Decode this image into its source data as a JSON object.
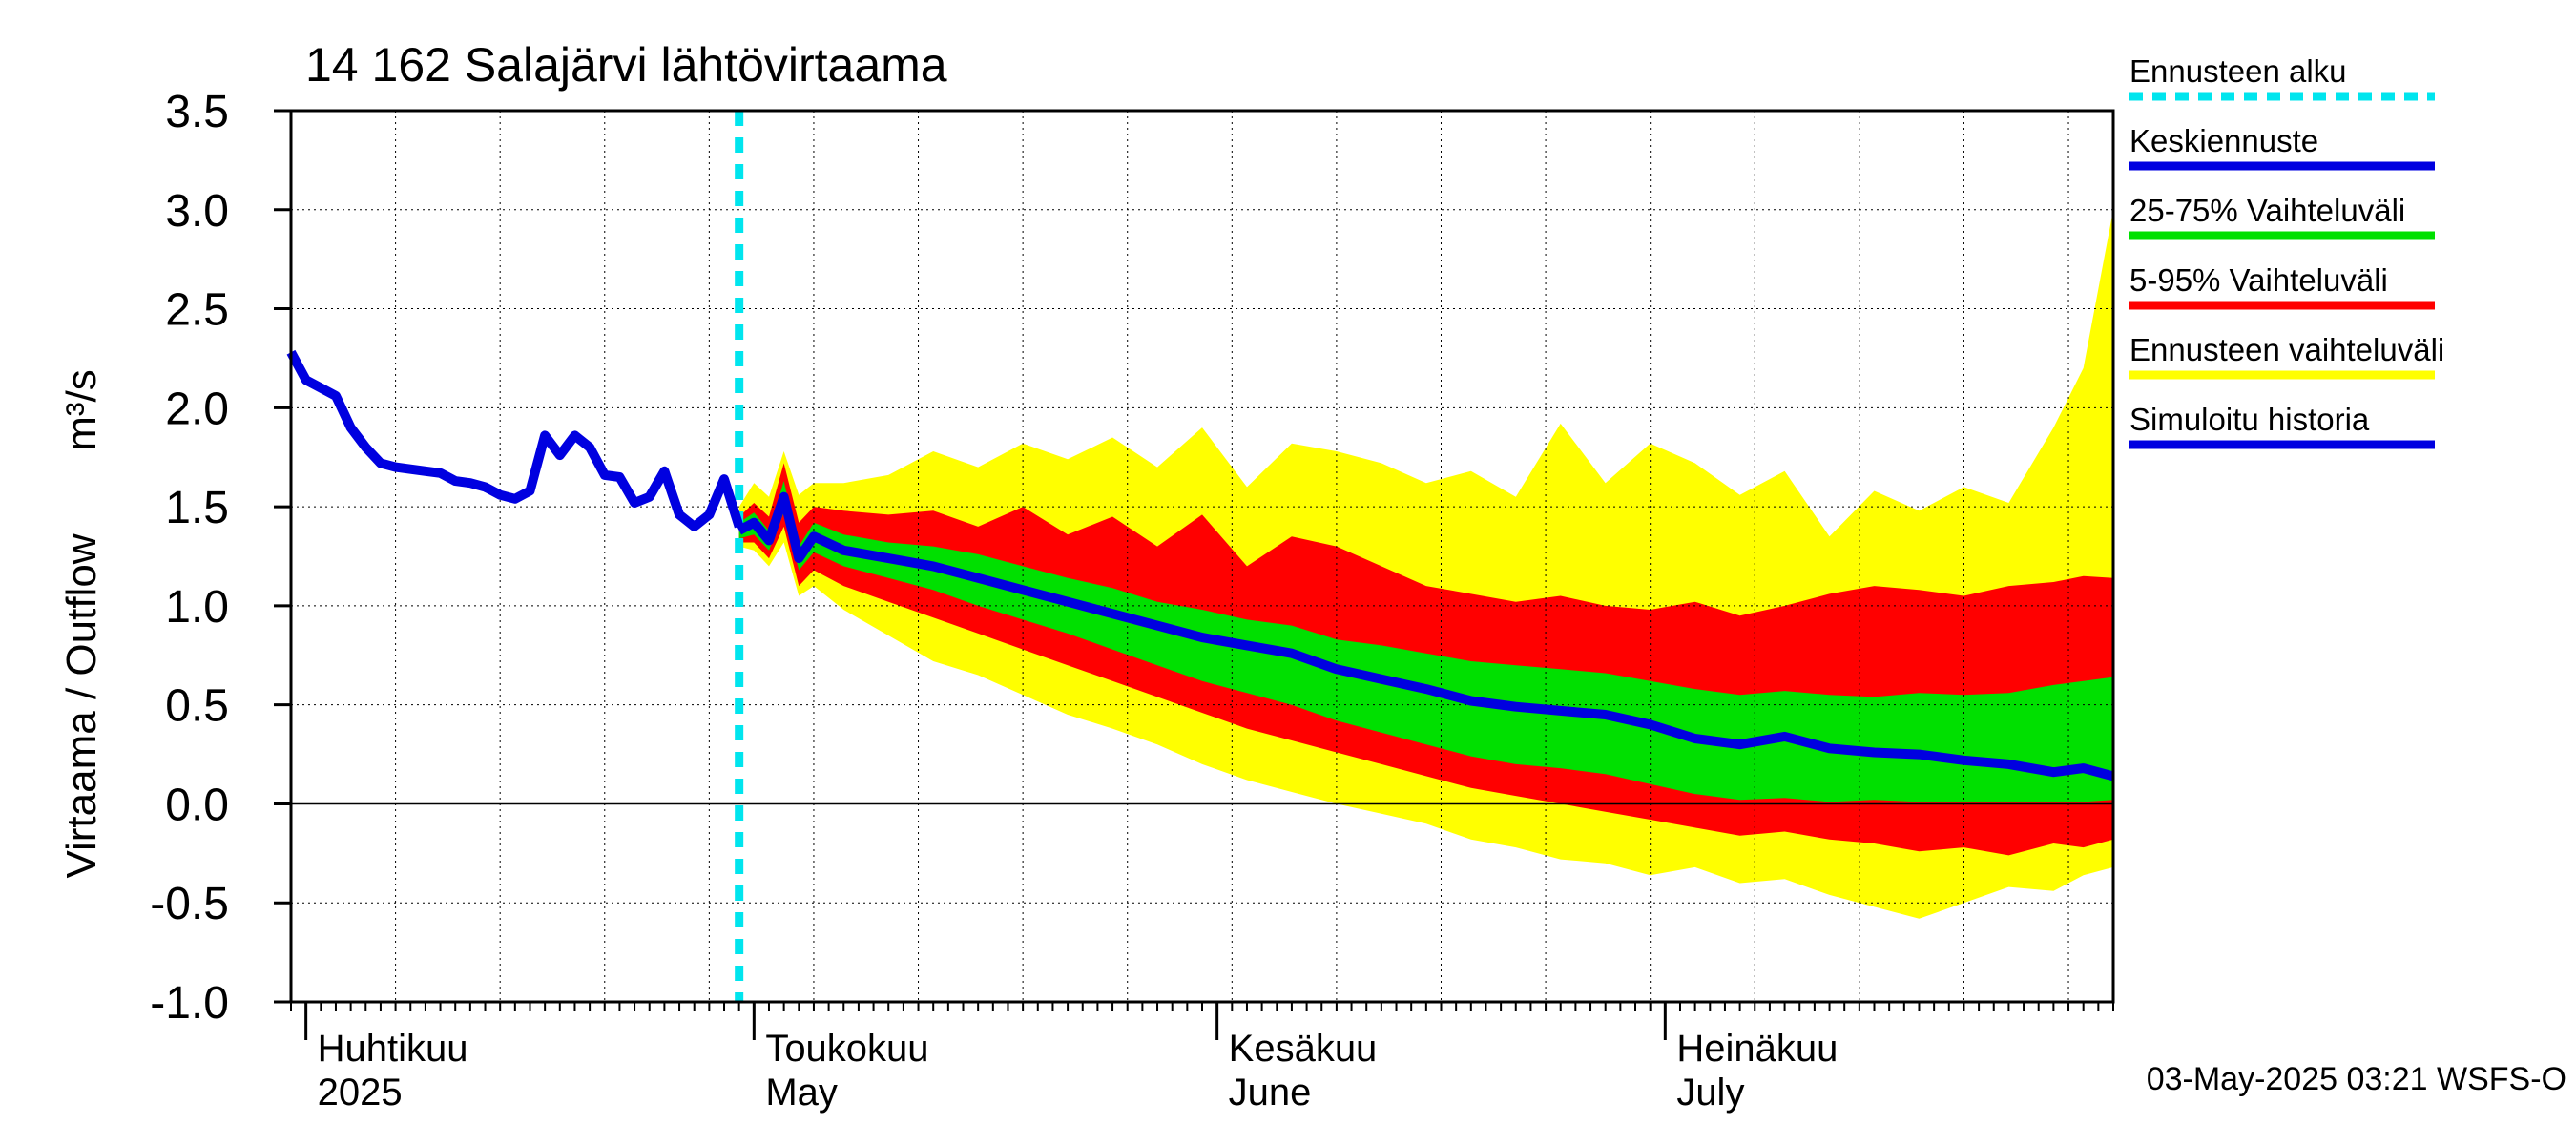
{
  "chart_data": {
    "type": "area",
    "title": "14 162 Salajärvi lähtövirtaama",
    "ylabel_fi": "Virtaama / Outflow",
    "ylabel_unit": "m³/s",
    "ylim": [
      -1.0,
      3.5
    ],
    "yticks": [
      "3.5",
      "3.0",
      "2.5",
      "2.0",
      "1.5",
      "1.0",
      "0.5",
      "0.0",
      "-0.5",
      "-1.0"
    ],
    "x_range": [
      "2025-03-31",
      "2025-07-31"
    ],
    "forecast_start": "2025-04-30",
    "month_labels": [
      {
        "date": "2025-04-01",
        "line1": "Huhtikuu",
        "line2": "2025"
      },
      {
        "date": "2025-05-01",
        "line1": "Toukokuu",
        "line2": "May"
      },
      {
        "date": "2025-06-01",
        "line1": "Kesäkuu",
        "line2": "June"
      },
      {
        "date": "2025-07-01",
        "line1": "Heinäkuu",
        "line2": "July"
      }
    ],
    "legend": [
      {
        "label": "Ennusteen alku",
        "color": "#00e5ee",
        "style": "dashed"
      },
      {
        "label": "Keskiennuste",
        "color": "#0000e0",
        "style": "solid"
      },
      {
        "label": "25-75% Vaihteluväli",
        "color": "#00e000",
        "style": "solid"
      },
      {
        "label": "5-95% Vaihteluväli",
        "color": "#ff0000",
        "style": "solid"
      },
      {
        "label": "Ennusteen vaihteluväli",
        "color": "#ffff00",
        "style": "solid"
      },
      {
        "label": "Simuloitu historia",
        "color": "#0000e0",
        "style": "solid"
      }
    ],
    "timestamp": "03-May-2025 03:21 WSFS-O",
    "history": {
      "name": "Simuloitu historia",
      "x": [
        "2025-03-31",
        "2025-04-01",
        "2025-04-02",
        "2025-04-03",
        "2025-04-04",
        "2025-04-05",
        "2025-04-06",
        "2025-04-07",
        "2025-04-08",
        "2025-04-09",
        "2025-04-10",
        "2025-04-11",
        "2025-04-12",
        "2025-04-13",
        "2025-04-14",
        "2025-04-15",
        "2025-04-16",
        "2025-04-17",
        "2025-04-18",
        "2025-04-19",
        "2025-04-20",
        "2025-04-21",
        "2025-04-22",
        "2025-04-23",
        "2025-04-24",
        "2025-04-25",
        "2025-04-26",
        "2025-04-27",
        "2025-04-28",
        "2025-04-29",
        "2025-04-30"
      ],
      "y": [
        2.28,
        2.14,
        2.1,
        2.06,
        1.9,
        1.8,
        1.72,
        1.7,
        1.69,
        1.68,
        1.67,
        1.63,
        1.62,
        1.6,
        1.56,
        1.54,
        1.58,
        1.86,
        1.76,
        1.86,
        1.8,
        1.66,
        1.65,
        1.52,
        1.55,
        1.68,
        1.46,
        1.4,
        1.46,
        1.64,
        1.4
      ]
    },
    "forecast": {
      "x": [
        "2025-04-30",
        "2025-05-01",
        "2025-05-02",
        "2025-05-03",
        "2025-05-04",
        "2025-05-05",
        "2025-05-07",
        "2025-05-10",
        "2025-05-13",
        "2025-05-16",
        "2025-05-19",
        "2025-05-22",
        "2025-05-25",
        "2025-05-28",
        "2025-05-31",
        "2025-06-03",
        "2025-06-06",
        "2025-06-09",
        "2025-06-12",
        "2025-06-15",
        "2025-06-18",
        "2025-06-21",
        "2025-06-24",
        "2025-06-27",
        "2025-06-30",
        "2025-07-03",
        "2025-07-06",
        "2025-07-09",
        "2025-07-12",
        "2025-07-15",
        "2025-07-18",
        "2025-07-21",
        "2025-07-24",
        "2025-07-27",
        "2025-07-29",
        "2025-07-31"
      ],
      "median": [
        1.38,
        1.42,
        1.33,
        1.55,
        1.24,
        1.35,
        1.28,
        1.24,
        1.2,
        1.14,
        1.08,
        1.02,
        0.96,
        0.9,
        0.84,
        0.8,
        0.76,
        0.68,
        0.63,
        0.58,
        0.52,
        0.49,
        0.47,
        0.45,
        0.4,
        0.33,
        0.3,
        0.34,
        0.28,
        0.26,
        0.25,
        0.22,
        0.2,
        0.16,
        0.18,
        0.14
      ],
      "p25": [
        1.34,
        1.36,
        1.28,
        1.47,
        1.18,
        1.27,
        1.2,
        1.14,
        1.08,
        1.0,
        0.93,
        0.86,
        0.78,
        0.7,
        0.62,
        0.56,
        0.5,
        0.42,
        0.36,
        0.3,
        0.24,
        0.2,
        0.18,
        0.15,
        0.1,
        0.05,
        0.02,
        0.03,
        0.01,
        0.02,
        0.01,
        0.01,
        0.01,
        0.01,
        0.01,
        0.02
      ],
      "p75": [
        1.42,
        1.47,
        1.38,
        1.63,
        1.3,
        1.42,
        1.36,
        1.32,
        1.3,
        1.26,
        1.2,
        1.14,
        1.09,
        1.02,
        0.98,
        0.93,
        0.9,
        0.83,
        0.8,
        0.76,
        0.72,
        0.7,
        0.68,
        0.66,
        0.62,
        0.58,
        0.55,
        0.57,
        0.55,
        0.54,
        0.56,
        0.55,
        0.56,
        0.6,
        0.62,
        0.64
      ],
      "p5": [
        1.32,
        1.32,
        1.24,
        1.4,
        1.1,
        1.18,
        1.1,
        1.02,
        0.94,
        0.86,
        0.78,
        0.7,
        0.62,
        0.54,
        0.46,
        0.38,
        0.32,
        0.26,
        0.2,
        0.14,
        0.08,
        0.04,
        0.0,
        -0.04,
        -0.08,
        -0.12,
        -0.16,
        -0.14,
        -0.18,
        -0.2,
        -0.24,
        -0.22,
        -0.26,
        -0.2,
        -0.22,
        -0.18
      ],
      "p95": [
        1.45,
        1.52,
        1.45,
        1.72,
        1.42,
        1.5,
        1.48,
        1.46,
        1.48,
        1.4,
        1.5,
        1.36,
        1.45,
        1.3,
        1.46,
        1.2,
        1.35,
        1.3,
        1.2,
        1.1,
        1.06,
        1.02,
        1.05,
        1.0,
        0.98,
        1.02,
        0.95,
        1.0,
        1.06,
        1.1,
        1.08,
        1.05,
        1.1,
        1.12,
        1.15,
        1.14
      ],
      "min": [
        1.3,
        1.28,
        1.2,
        1.32,
        1.05,
        1.1,
        0.98,
        0.85,
        0.72,
        0.65,
        0.55,
        0.45,
        0.38,
        0.3,
        0.2,
        0.12,
        0.06,
        0.0,
        -0.05,
        -0.1,
        -0.18,
        -0.22,
        -0.28,
        -0.3,
        -0.36,
        -0.32,
        -0.4,
        -0.38,
        -0.46,
        -0.52,
        -0.58,
        -0.5,
        -0.42,
        -0.44,
        -0.36,
        -0.32
      ],
      "max": [
        1.5,
        1.62,
        1.55,
        1.78,
        1.56,
        1.62,
        1.62,
        1.66,
        1.78,
        1.7,
        1.82,
        1.74,
        1.85,
        1.7,
        1.9,
        1.6,
        1.82,
        1.78,
        1.72,
        1.62,
        1.68,
        1.55,
        1.92,
        1.62,
        1.82,
        1.72,
        1.56,
        1.68,
        1.35,
        1.58,
        1.48,
        1.6,
        1.52,
        1.9,
        2.2,
        3.0
      ]
    }
  }
}
